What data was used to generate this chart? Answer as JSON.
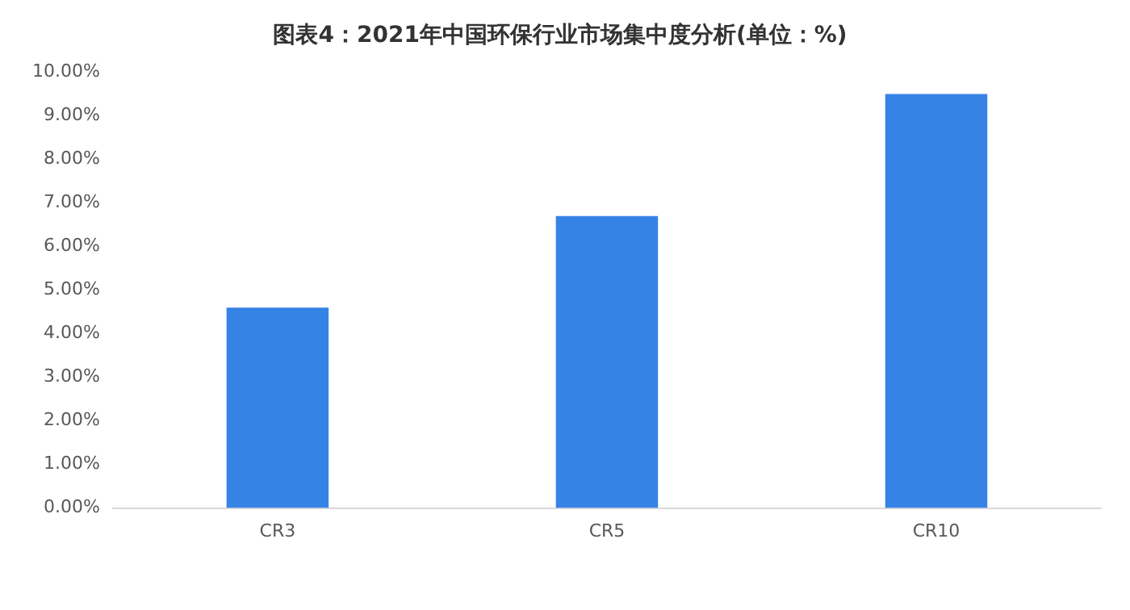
{
  "chart_data": {
    "type": "bar",
    "title": "图表4：2021年中国环保行业市场集中度分析(单位：%)",
    "categories": [
      "CR3",
      "CR5",
      "CR10"
    ],
    "values": [
      4.6,
      6.7,
      9.5
    ],
    "color": "#3683e6",
    "ylim": [
      0,
      10
    ],
    "yticks": [
      {
        "value": 0,
        "label": "0.00%"
      },
      {
        "value": 1,
        "label": "1.00%"
      },
      {
        "value": 2,
        "label": "2.00%"
      },
      {
        "value": 3,
        "label": "3.00%"
      },
      {
        "value": 4,
        "label": "4.00%"
      },
      {
        "value": 5,
        "label": "5.00%"
      },
      {
        "value": 6,
        "label": "6.00%"
      },
      {
        "value": 7,
        "label": "7.00%"
      },
      {
        "value": 8,
        "label": "8.00%"
      },
      {
        "value": 9,
        "label": "9.00%"
      },
      {
        "value": 10,
        "label": "10.00%"
      }
    ],
    "grid": false
  }
}
